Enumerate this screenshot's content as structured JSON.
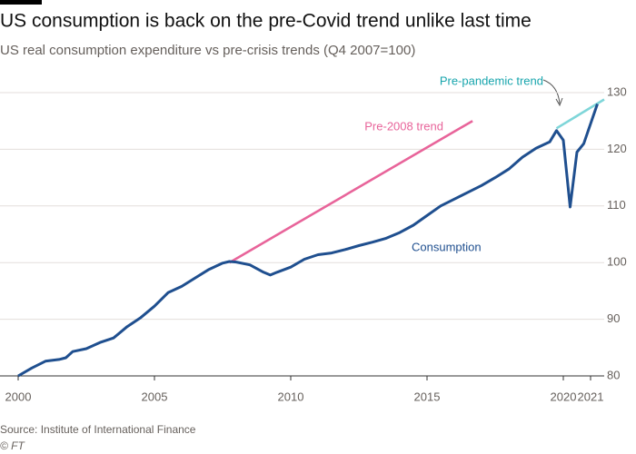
{
  "chart_data": {
    "type": "line",
    "title": "US consumption is back on the pre-Covid trend unlike last time",
    "subtitle": "US real consumption expenditure vs pre-crisis trends (Q4 2007=100)",
    "source": "Source: Institute of International Finance",
    "credit": "© FT",
    "xlim": [
      2000,
      2021.5
    ],
    "ylim": [
      80,
      130
    ],
    "xticks": [
      2000,
      2005,
      2010,
      2015,
      2020,
      2021
    ],
    "yticks": [
      80,
      90,
      100,
      110,
      120,
      130
    ],
    "grid": true,
    "series": [
      {
        "name": "Consumption",
        "color": "#1f4f8f",
        "x": [
          2000,
          2000.5,
          2001,
          2001.5,
          2001.75,
          2002,
          2002.5,
          2003,
          2003.5,
          2004,
          2004.5,
          2005,
          2005.5,
          2006,
          2006.5,
          2007,
          2007.5,
          2007.75,
          2008,
          2008.5,
          2009,
          2009.25,
          2009.5,
          2010,
          2010.5,
          2011,
          2011.5,
          2012,
          2012.5,
          2013,
          2013.5,
          2014,
          2014.5,
          2015,
          2015.5,
          2016,
          2016.5,
          2017,
          2017.5,
          2018,
          2018.5,
          2019,
          2019.5,
          2019.75,
          2020,
          2020.25,
          2020.5,
          2020.75,
          2021,
          2021.25
        ],
        "values": [
          80,
          81.4,
          82.6,
          82.9,
          83.2,
          84.3,
          84.8,
          85.9,
          86.7,
          88.7,
          90.3,
          92.3,
          94.7,
          95.8,
          97.3,
          98.8,
          99.9,
          100.2,
          100.1,
          99.6,
          98.3,
          97.8,
          98.3,
          99.2,
          100.6,
          101.4,
          101.7,
          102.3,
          103,
          103.6,
          104.3,
          105.3,
          106.6,
          108.3,
          110,
          111.2,
          112.4,
          113.6,
          115,
          116.5,
          118.6,
          120.2,
          121.3,
          123.3,
          121.6,
          109.8,
          119.5,
          121,
          124.5,
          128
        ]
      },
      {
        "name": "Pre-2008 trend",
        "color": "#e8649a",
        "x": [
          2007.75,
          2016.67
        ],
        "values": [
          100,
          125
        ]
      },
      {
        "name": "Pre-pandemic trend",
        "color": "#7fd6d9",
        "x": [
          2019.75,
          2021.5
        ],
        "values": [
          123.7,
          128.8
        ]
      }
    ]
  }
}
